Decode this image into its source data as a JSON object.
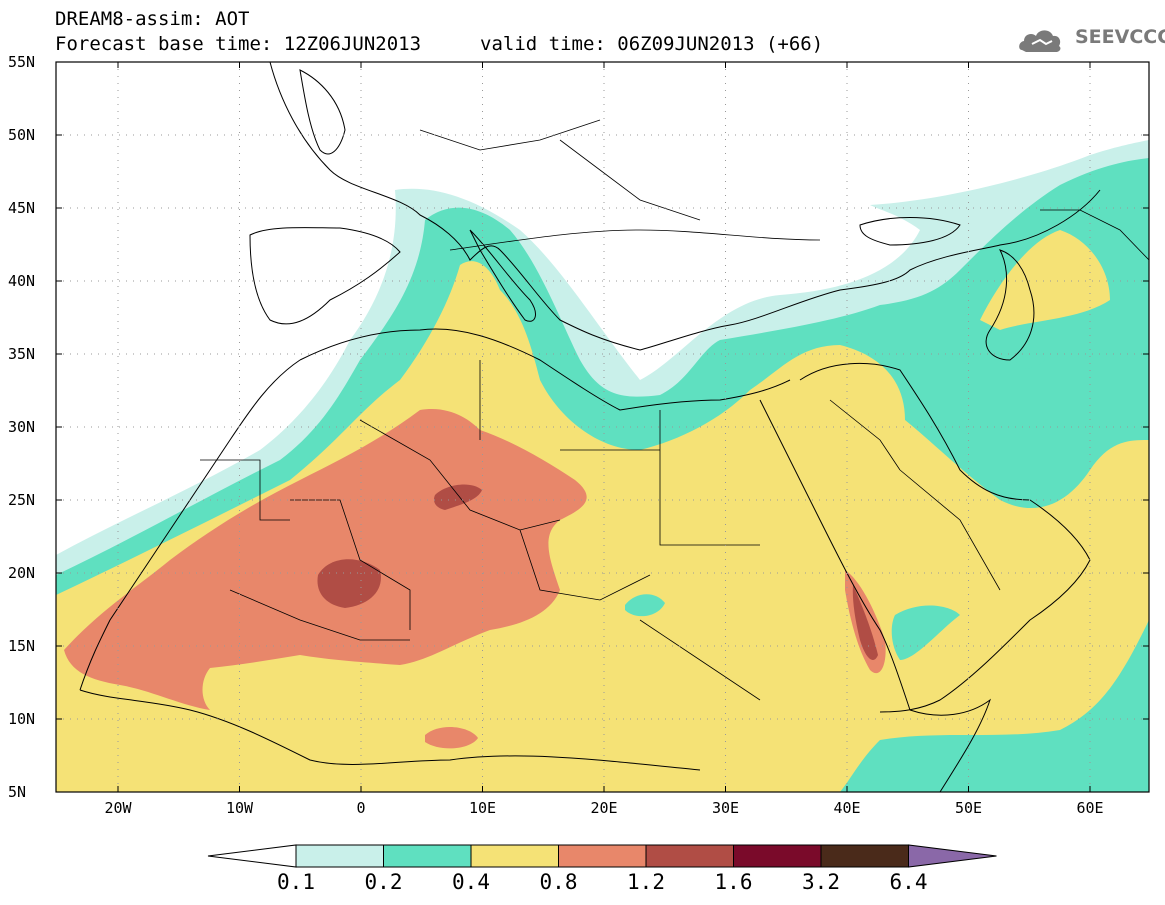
{
  "header": {
    "title_line1": "DREAM8-assim: AOT",
    "title_line2": "Forecast base time: 12Z06JUN2013",
    "valid_time": "valid time: 06Z09JUN2013 (+66)",
    "logo_text": "SEEVCCC"
  },
  "map": {
    "lat_labels": [
      "55N",
      "50N",
      "45N",
      "40N",
      "35N",
      "30N",
      "25N",
      "20N",
      "15N",
      "10N",
      "5N"
    ],
    "lon_labels": [
      "20W",
      "10W",
      "0",
      "10E",
      "20E",
      "30E",
      "40E",
      "50E",
      "60E"
    ],
    "field": "AOT",
    "colors": {
      "c_0_1": "#c9f0ea",
      "c_0_2": "#5fe0c0",
      "c_0_4": "#f5e276",
      "c_0_8": "#e8876a",
      "c_1_2": "#b04d45",
      "c_1_6": "#7a0a2a",
      "c_3_2": "#4a2a1a",
      "c_6_4": "#8a68a8"
    }
  },
  "colorbar": {
    "labels": [
      "0.1",
      "0.2",
      "0.4",
      "0.8",
      "1.2",
      "1.6",
      "3.2",
      "6.4"
    ]
  }
}
